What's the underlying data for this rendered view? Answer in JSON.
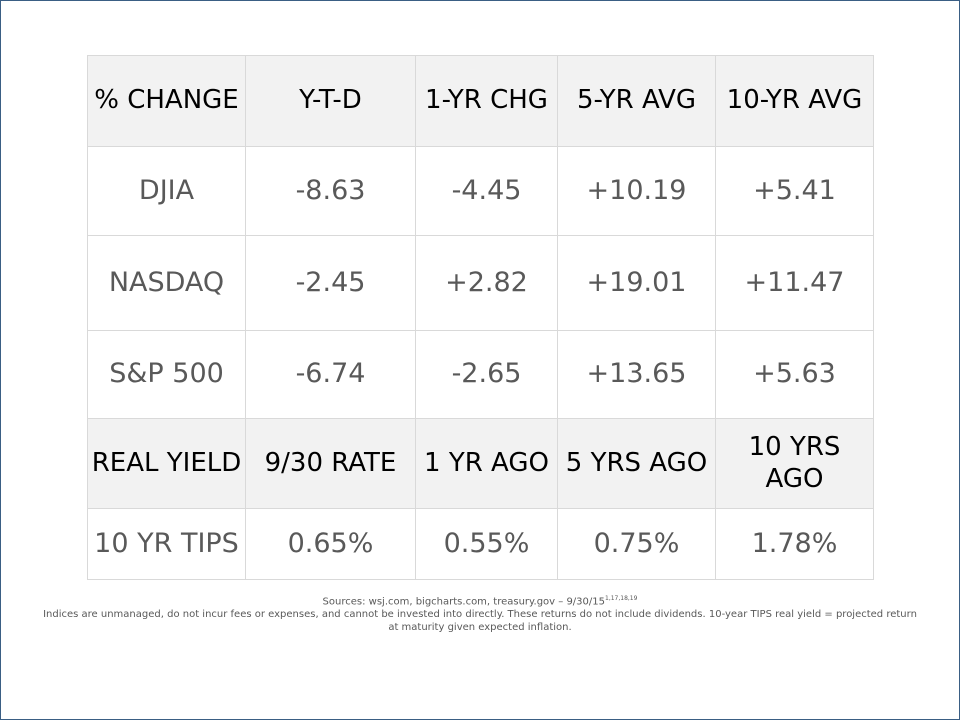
{
  "header_row_1": {
    "c1": "% CHANGE",
    "c2": "Y-T-D",
    "c3": "1-YR CHG",
    "c4": "5-YR AVG",
    "c5": "10-YR AVG"
  },
  "rows": [
    {
      "label": "DJIA",
      "ytd": "-8.63",
      "yr1": "-4.45",
      "yr5": "+10.19",
      "yr10": "+5.41"
    },
    {
      "label": "NASDAQ",
      "ytd": "-2.45",
      "yr1": "+2.82",
      "yr5": "+19.01",
      "yr10": "+11.47"
    },
    {
      "label": "S&P 500",
      "ytd": "-6.74",
      "yr1": "-2.65",
      "yr5": "+13.65",
      "yr10": "+5.63"
    }
  ],
  "header_row_2": {
    "c1": "REAL YIELD",
    "c2": "9/30 RATE",
    "c3": "1 YR AGO",
    "c4": "5 YRS AGO",
    "c5": "10 YRS AGO"
  },
  "tips_row": {
    "label": "10 YR TIPS",
    "rate": "0.65%",
    "yr1": "0.55%",
    "yr5": "0.75%",
    "yr10": "1.78%"
  },
  "footer": {
    "sources": "Sources: wsj.com, bigcharts.com, treasury.gov – 9/30/15",
    "sources_sup": "1,17,18,19",
    "disclaimer": "Indices are unmanaged, do not incur fees or expenses, and cannot be invested into directly. These returns do not include dividends. 10-year TIPS real yield = projected return at maturity given expected inflation."
  },
  "colors": {
    "border": "#3a5e84",
    "header_bg": "#f2f2f2",
    "grid": "#d9d9d9",
    "data_text": "#595959"
  }
}
